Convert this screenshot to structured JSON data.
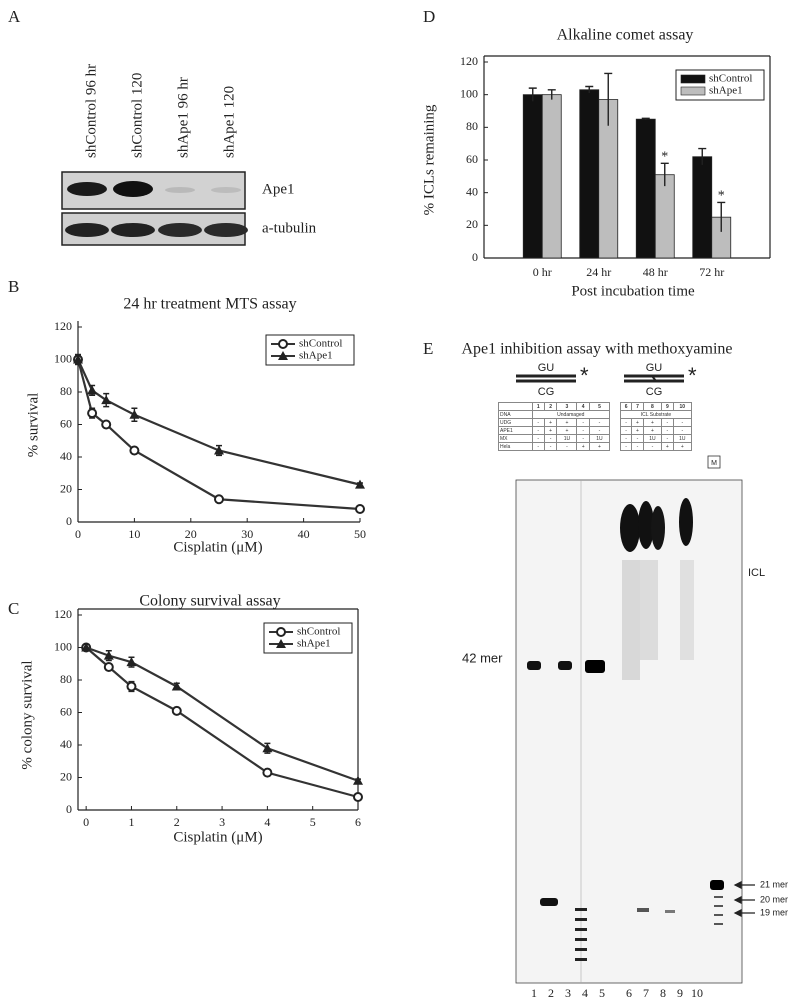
{
  "panel_labels": [
    "A",
    "B",
    "C",
    "D",
    "E"
  ],
  "blot": {
    "lanes": [
      "shControl 96 hr",
      "shControl 120",
      "shApe1 96 hr",
      "shApe1 120"
    ],
    "bands": [
      "Ape1",
      "a-tubulin"
    ]
  },
  "chart_data": [
    {
      "type": "line",
      "title": "24 hr treatment MTS assay",
      "x_label": "Cisplatin (μM)",
      "y_label": "% survival",
      "xlim": [
        0,
        50
      ],
      "xticks": [
        0,
        10,
        20,
        30,
        40,
        50
      ],
      "ylim": [
        0,
        120
      ],
      "yticks": [
        0,
        20,
        40,
        60,
        80,
        100,
        120
      ],
      "frame": false,
      "legend": "upper right",
      "series": [
        {
          "name": "shControl",
          "marker": "circle",
          "color": "#333333",
          "x": [
            0,
            2.5,
            5,
            10,
            25,
            50
          ],
          "values": [
            100,
            67,
            60,
            44,
            14,
            8
          ],
          "errors": [
            3,
            3,
            2,
            2,
            1,
            1
          ]
        },
        {
          "name": "shApe1",
          "marker": "triangle",
          "color": "#333333",
          "x": [
            0,
            2.5,
            5,
            10,
            25,
            50
          ],
          "values": [
            100,
            81,
            75,
            66,
            44,
            23
          ],
          "errors": [
            3,
            3,
            4,
            4,
            3,
            1
          ]
        }
      ]
    },
    {
      "type": "line",
      "title": "Colony survival assay",
      "x_label": "Cisplatin (μM)",
      "y_label": "% colony survival",
      "xlim": [
        -0.18,
        6
      ],
      "xticks": [
        0,
        1,
        2,
        3,
        4,
        5,
        6
      ],
      "ylim": [
        0,
        120
      ],
      "yticks": [
        0,
        20,
        40,
        60,
        80,
        100,
        120
      ],
      "frame": true,
      "legend": "upper right",
      "series": [
        {
          "name": "shControl",
          "marker": "circle",
          "color": "#333333",
          "x": [
            0,
            0.5,
            1,
            2,
            4,
            6
          ],
          "values": [
            100,
            88,
            76,
            61,
            23,
            8
          ],
          "errors": [
            2,
            2,
            3,
            2,
            1,
            1
          ]
        },
        {
          "name": "shApe1",
          "marker": "triangle",
          "color": "#333333",
          "x": [
            0,
            0.5,
            1,
            2,
            4,
            6
          ],
          "values": [
            100,
            95,
            91,
            76,
            38,
            18
          ],
          "errors": [
            2,
            3,
            3,
            2,
            3,
            1
          ]
        }
      ]
    },
    {
      "type": "bar",
      "title": "Alkaline comet assay",
      "x_label": "Post incubation time",
      "y_label": "% ICLs remaining",
      "categories": [
        "0 hr",
        "24 hr",
        "48 hr",
        "72 hr"
      ],
      "ylim": [
        0,
        120
      ],
      "yticks": [
        0,
        20,
        40,
        60,
        80,
        100,
        120
      ],
      "frame": true,
      "legend": "upper right",
      "series": [
        {
          "name": "shControl",
          "color": "#111111",
          "values": [
            100,
            103,
            85,
            62
          ],
          "errors": [
            4,
            2,
            0.5,
            5
          ]
        },
        {
          "name": "shApe1",
          "color": "#bdbdbd",
          "values": [
            100,
            97,
            51,
            25
          ],
          "errors": [
            3,
            16,
            7,
            9
          ],
          "annotations": [
            null,
            null,
            "*",
            "*"
          ]
        }
      ]
    }
  ],
  "gel": {
    "title": "Ape1 inhibition assay with methoxyamine",
    "diagrams": [
      {
        "top": "GU",
        "bottom": "CG",
        "star": "*"
      },
      {
        "top": "GU",
        "bottom": "CG",
        "star": "*"
      }
    ],
    "tables": [
      {
        "lanes": [
          "1",
          "2",
          "3",
          "4",
          "5"
        ],
        "dna_label": "DNA",
        "dna": "Undamaged",
        "rows": [
          {
            "label": "UDG",
            "cells": [
              "-",
              "+",
              "+",
              "-",
              "-"
            ]
          },
          {
            "label": "APE1",
            "cells": [
              "-",
              "+",
              "+",
              "-",
              "-"
            ]
          },
          {
            "label": "MX",
            "cells": [
              "-",
              "-",
              "1U",
              "-",
              "1U"
            ]
          },
          {
            "label": "Hela",
            "cells": [
              "-",
              "-",
              "-",
              "+",
              "+"
            ]
          }
        ]
      },
      {
        "lanes": [
          "6",
          "7",
          "8",
          "9",
          "10"
        ],
        "dna": "ICL Substrate",
        "rows": [
          {
            "cells": [
              "-",
              "+",
              "+",
              "-",
              "-"
            ]
          },
          {
            "cells": [
              "-",
              "+",
              "+",
              "-",
              "-"
            ]
          },
          {
            "cells": [
              "-",
              "-",
              "1U",
              "-",
              "1U"
            ]
          },
          {
            "cells": [
              "-",
              "-",
              "-",
              "+",
              "+"
            ]
          }
        ]
      }
    ],
    "marker_lane": "M",
    "labels": {
      "icl": "ICL",
      "mer42": "42 mer",
      "mer21": "21 mer",
      "mer20": "20 mer",
      "mer19": "19 mer"
    },
    "lane_numbers": [
      "1",
      "2",
      "3",
      "4",
      "5",
      "6",
      "7",
      "8",
      "9",
      "10"
    ]
  }
}
